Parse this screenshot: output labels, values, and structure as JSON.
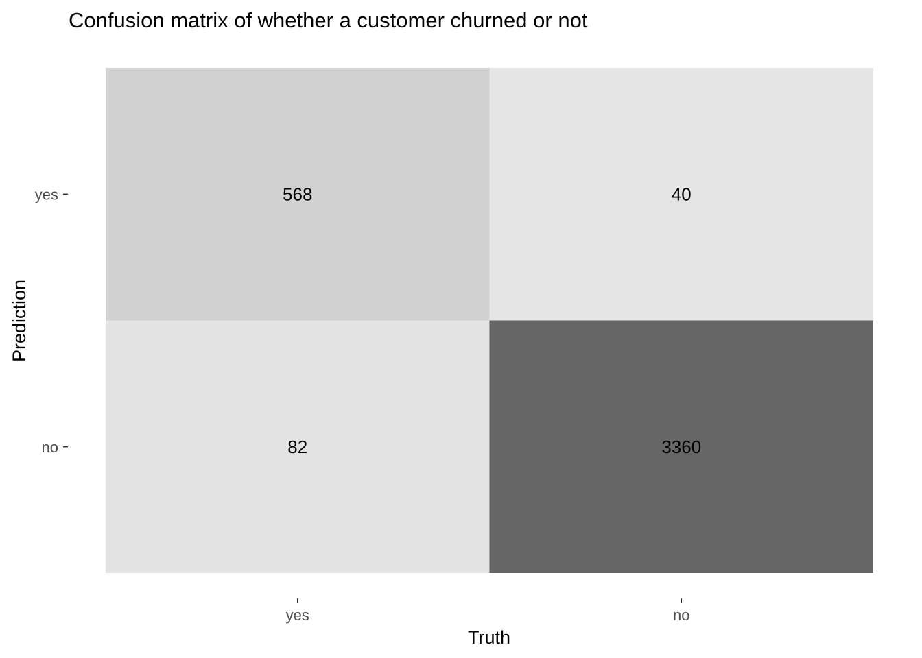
{
  "chart_data": {
    "type": "heatmap",
    "title": "Confusion matrix of whether a customer churned or not",
    "xlabel": "Truth",
    "ylabel": "Prediction",
    "x_categories": [
      "yes",
      "no"
    ],
    "y_categories": [
      "yes",
      "no"
    ],
    "cells": [
      {
        "prediction": "yes",
        "truth": "yes",
        "value": 568
      },
      {
        "prediction": "yes",
        "truth": "no",
        "value": 40
      },
      {
        "prediction": "no",
        "truth": "yes",
        "value": 82
      },
      {
        "prediction": "no",
        "truth": "no",
        "value": 3360
      }
    ],
    "grid": false,
    "legend": "none",
    "color_scale": {
      "low": "#e5e5e5",
      "high": "#666666"
    }
  }
}
